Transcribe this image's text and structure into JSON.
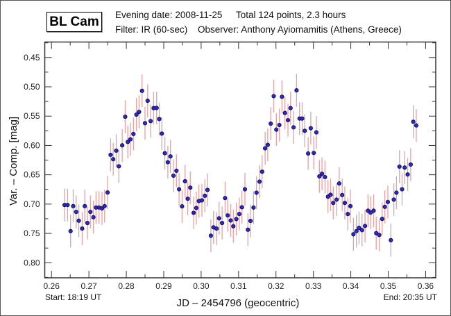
{
  "header": {
    "object_name": "BL Cam",
    "evening_date": "Evening date: 2008-11-25",
    "total": "Total 124 points, 2.3 hours",
    "filter": "Filter: IR (60-sec)",
    "observer": "Observer: Anthony Ayiomamitis (Athens, Greece)"
  },
  "footer": {
    "start": "Start: 18:19 UT",
    "end": "End: 20:35 UT"
  },
  "chart_data": {
    "type": "scatter",
    "title": "BL Cam",
    "xlabel": "JD – 2454796  (geocentric)",
    "ylabel": "Var. – Comp. [mag]",
    "xlim": [
      0.2582,
      0.3627
    ],
    "ylim": [
      0.8257,
      0.4236
    ],
    "y_inverted": true,
    "xticks": [
      0.26,
      0.27,
      0.28,
      0.29,
      0.3,
      0.31,
      0.32,
      0.33,
      0.34,
      0.35,
      0.36
    ],
    "xtick_labels": [
      "0.26",
      "0.27",
      "0.28",
      "0.29",
      "0.30",
      "0.31",
      "0.32",
      "0.33",
      "0.34",
      "0.35",
      "0.36"
    ],
    "yticks": [
      0.45,
      0.5,
      0.55,
      0.6,
      0.65,
      0.7,
      0.75,
      0.8
    ],
    "ytick_labels": [
      "0.45",
      "0.50",
      "0.55",
      "0.60",
      "0.65",
      "0.70",
      "0.75",
      "0.80"
    ],
    "grid": false,
    "error": 0.028,
    "colors": {
      "marker_fill": "#2a2ad0",
      "marker_edge": "#10105a",
      "errorbar": "#e8a0a0"
    },
    "x": [
      0.2635,
      0.2643,
      0.2651,
      0.2658,
      0.2666,
      0.2673,
      0.2682,
      0.2689,
      0.2696,
      0.2704,
      0.2712,
      0.2719,
      0.2727,
      0.2735,
      0.2742,
      0.275,
      0.2758,
      0.2765,
      0.2773,
      0.278,
      0.2789,
      0.2797,
      0.2804,
      0.2811,
      0.2819,
      0.2827,
      0.2834,
      0.2842,
      0.285,
      0.2857,
      0.2865,
      0.2873,
      0.2881,
      0.2888,
      0.2895,
      0.2903,
      0.2911,
      0.2918,
      0.2926,
      0.2934,
      0.2941,
      0.2949,
      0.2957,
      0.2964,
      0.2971,
      0.298,
      0.2987,
      0.2994,
      0.3002,
      0.301,
      0.3017,
      0.3026,
      0.3033,
      0.3041,
      0.3048,
      0.3056,
      0.3064,
      0.3071,
      0.3079,
      0.3086,
      0.3094,
      0.3102,
      0.3109,
      0.3117,
      0.3125,
      0.3132,
      0.314,
      0.3148,
      0.3156,
      0.3163,
      0.3171,
      0.3178,
      0.3186,
      0.3194,
      0.3201,
      0.3209,
      0.3216,
      0.3224,
      0.3232,
      0.3239,
      0.3247,
      0.3255,
      0.3263,
      0.327,
      0.3277,
      0.3286,
      0.3293,
      0.3301,
      0.3308,
      0.3316,
      0.3323,
      0.3331,
      0.3339,
      0.3346,
      0.3353,
      0.3362,
      0.3369,
      0.3377,
      0.3384,
      0.3392,
      0.3399,
      0.3407,
      0.3415,
      0.3422,
      0.343,
      0.3438,
      0.3446,
      0.3453,
      0.3461,
      0.3468,
      0.3476,
      0.3484,
      0.3491,
      0.3499,
      0.3507,
      0.3515,
      0.3522,
      0.353,
      0.3537,
      0.3544,
      0.3552,
      0.356,
      0.3567,
      0.3575
    ],
    "y": [
      0.7015,
      0.7015,
      0.7461,
      0.7035,
      0.7133,
      0.7283,
      0.7417,
      0.7035,
      0.7322,
      0.7133,
      0.7224,
      0.7059,
      0.7059,
      0.7074,
      0.7035,
      0.6802,
      0.616,
      0.6235,
      0.6089,
      0.6356,
      0.5998,
      0.551,
      0.5939,
      0.5895,
      0.5805,
      0.5474,
      0.5427,
      0.5068,
      0.562,
      0.5238,
      0.5584,
      0.5363,
      0.536,
      0.5549,
      0.5797,
      0.6132,
      0.6286,
      0.6187,
      0.6515,
      0.6432,
      0.6747,
      0.7039,
      0.661,
      0.6909,
      0.672,
      0.7149,
      0.7066,
      0.6948,
      0.6936,
      0.6858,
      0.6758,
      0.7539,
      0.7397,
      0.7417,
      0.7243,
      0.7322,
      0.6897,
      0.7193,
      0.7279,
      0.7378,
      0.7255,
      0.7169,
      0.7054,
      0.6747,
      0.7437,
      0.7287,
      0.7059,
      0.6806,
      0.6617,
      0.6447,
      0.6049,
      0.599,
      0.5628,
      0.5159,
      0.573,
      0.5652,
      0.517,
      0.5446,
      0.5569,
      0.5363,
      0.5691,
      0.506,
      0.5541,
      0.5541,
      0.575,
      0.6137,
      0.5706,
      0.6128,
      0.5777,
      0.6527,
      0.6483,
      0.6539,
      0.6873,
      0.6841,
      0.698,
      0.6924,
      0.6648,
      0.6846,
      0.698,
      0.7169,
      0.7035,
      0.7515,
      0.7461,
      0.7405,
      0.7444,
      0.7373,
      0.7113,
      0.7145,
      0.7113,
      0.7496,
      0.7527,
      0.7252,
      0.7047,
      0.6964,
      0.7615,
      0.6924,
      0.6806,
      0.6361,
      0.6747,
      0.6377,
      0.6495,
      0.6326,
      0.5596,
      0.5659
    ]
  }
}
